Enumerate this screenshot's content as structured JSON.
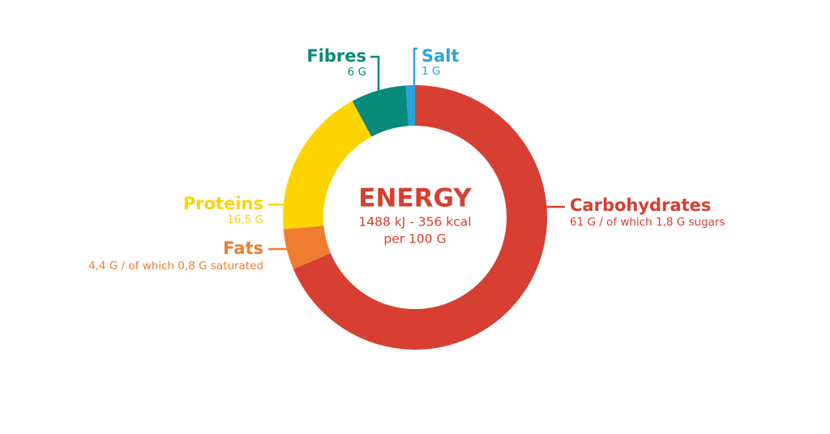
{
  "chart_data": {
    "type": "donut",
    "center_title": "ENERGY",
    "center_lines": [
      "1488 kJ - 356 kcal",
      "per 100 G"
    ],
    "center_color": "#d63f31",
    "categories": [
      "Carbohydrates",
      "Fats",
      "Proteins",
      "Fibres",
      "Salt"
    ],
    "values": [
      61,
      4.4,
      16.5,
      6,
      1
    ],
    "value_labels": [
      "61 G / of which 1,8 G sugars",
      "4,4 G / of which 0,8 G saturated",
      "16,5 G",
      "6 G",
      "1 G"
    ],
    "colors": [
      "#d63f31",
      "#ef7d2f",
      "#fdd400",
      "#0a8a7a",
      "#2aa3d8"
    ]
  }
}
